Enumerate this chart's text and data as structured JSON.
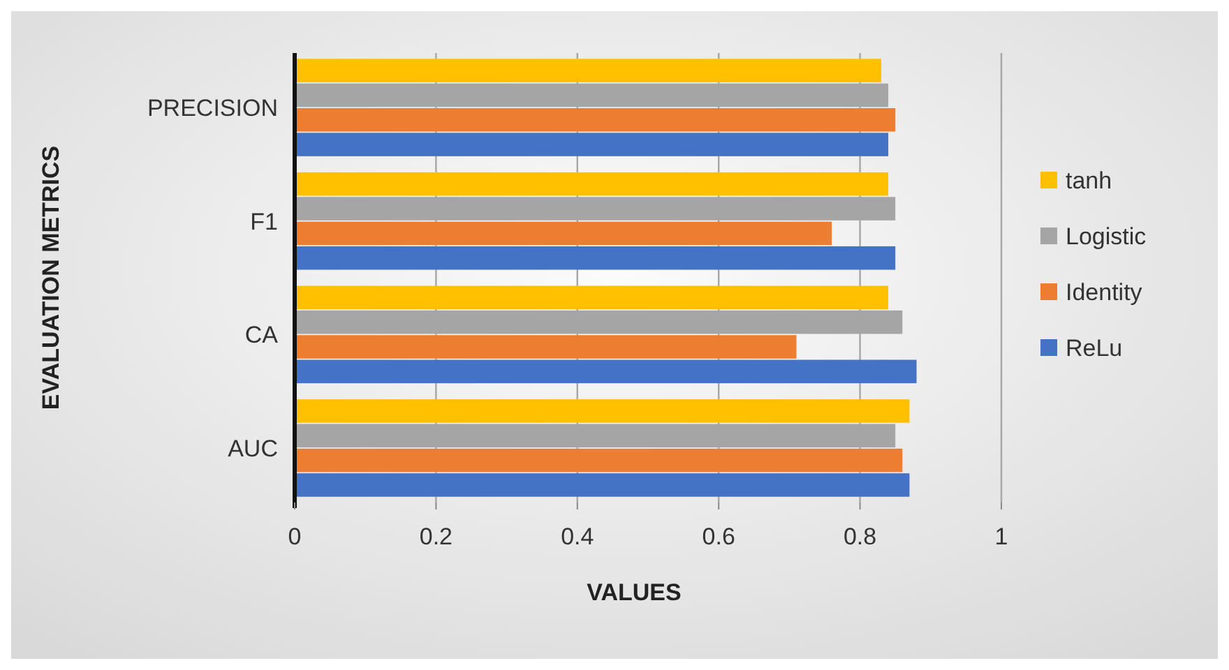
{
  "chart_data": {
    "type": "bar",
    "orientation": "horizontal",
    "xlabel": "VALUES",
    "ylabel": "EVALUATION METRICS",
    "categories": [
      "PRECISION",
      "F1",
      "CA",
      "AUC"
    ],
    "series": [
      {
        "name": "tanh",
        "color": "#ffc000",
        "values": [
          0.83,
          0.84,
          0.84,
          0.87
        ]
      },
      {
        "name": "Logistic",
        "color": "#a5a5a5",
        "values": [
          0.84,
          0.85,
          0.86,
          0.85
        ]
      },
      {
        "name": "Identity",
        "color": "#ed7d31",
        "values": [
          0.85,
          0.76,
          0.71,
          0.86
        ]
      },
      {
        "name": "ReLu",
        "color": "#4472c4",
        "values": [
          0.84,
          0.85,
          0.88,
          0.87
        ]
      }
    ],
    "xlim": [
      0,
      1
    ],
    "xticks": [
      0,
      0.2,
      0.4,
      0.6,
      0.8,
      1
    ],
    "grid": "x",
    "legend": "right"
  }
}
